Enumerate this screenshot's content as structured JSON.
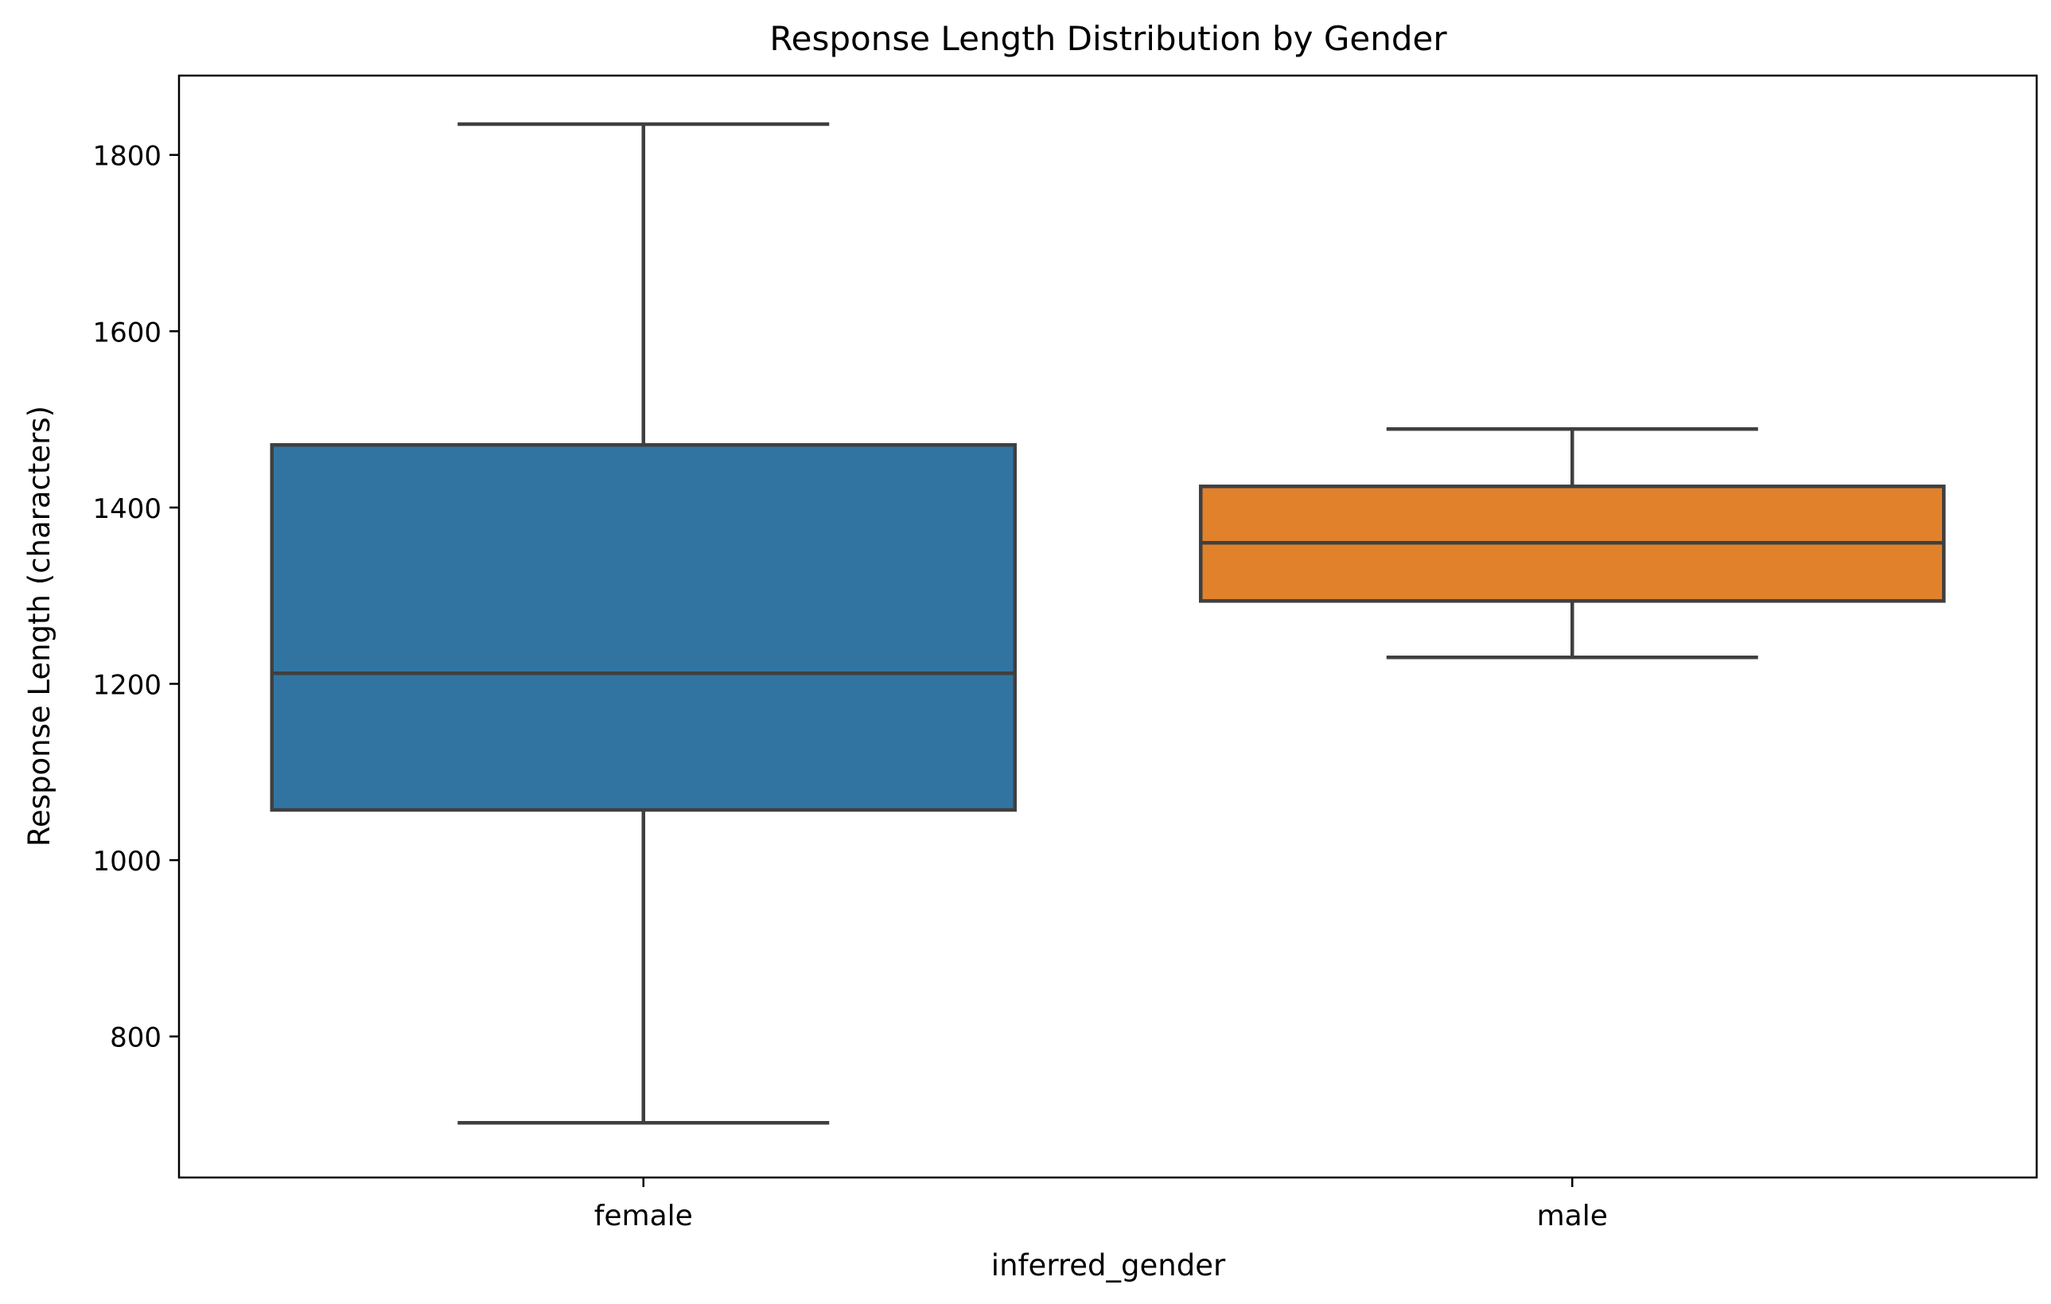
{
  "chart_data": {
    "type": "box",
    "title": "Response Length Distribution by Gender",
    "xlabel": "inferred_gender",
    "ylabel": "Response Length (characters)",
    "ylim": [
      640,
      1890
    ],
    "yticks": [
      800,
      1000,
      1200,
      1400,
      1600,
      1800
    ],
    "grid": false,
    "legend": "none",
    "categories": [
      "female",
      "male"
    ],
    "boxes": [
      {
        "category": "female",
        "whisker_low": 702,
        "q1": 1057,
        "median": 1212,
        "q3": 1471,
        "whisker_high": 1835,
        "color": "#3274a1"
      },
      {
        "category": "male",
        "whisker_low": 1230,
        "q1": 1294,
        "median": 1360,
        "q3": 1424,
        "whisker_high": 1489,
        "color": "#e1812c"
      }
    ],
    "line_color": "#3f3f3f"
  }
}
